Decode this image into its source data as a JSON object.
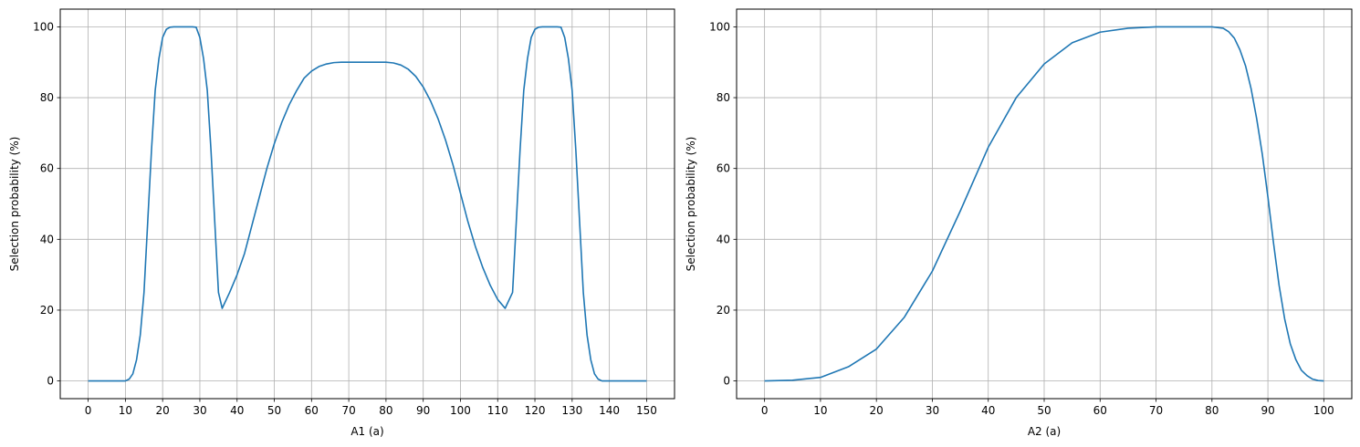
{
  "chart_data": [
    {
      "type": "line",
      "title": "",
      "xlabel": "A1 (a)",
      "ylabel": "Selection probability (%)",
      "xlim": [
        -7.5,
        157.5
      ],
      "ylim": [
        -5,
        105
      ],
      "xticks": [
        0,
        10,
        20,
        30,
        40,
        50,
        60,
        70,
        80,
        90,
        100,
        110,
        120,
        130,
        140,
        150
      ],
      "yticks": [
        0,
        20,
        40,
        60,
        80,
        100
      ],
      "grid": true,
      "color": "#1f77b4",
      "series": [
        {
          "x": [
            0,
            10,
            11,
            12,
            13,
            14,
            15,
            16,
            17,
            18,
            19,
            20,
            21,
            22,
            23,
            24,
            28,
            29,
            30,
            31,
            32,
            33,
            34,
            35,
            36,
            38,
            40,
            42,
            44,
            46,
            48,
            50,
            52,
            54,
            56,
            58,
            60,
            62,
            64,
            66,
            68,
            70,
            75,
            80,
            82,
            84,
            86,
            88,
            90,
            92,
            94,
            96,
            98,
            100,
            102,
            104,
            106,
            108,
            110,
            112,
            114,
            115,
            116,
            117,
            118,
            119,
            120,
            121,
            122,
            126,
            127,
            128,
            129,
            130,
            131,
            132,
            133,
            134,
            135,
            136,
            137,
            138,
            139,
            140,
            150
          ],
          "y": [
            0,
            0,
            0.5,
            2,
            6,
            13,
            25,
            45,
            65,
            82,
            91,
            97,
            99.3,
            99.9,
            100,
            100,
            100,
            99.9,
            97,
            91,
            82,
            65,
            45,
            25,
            20.5,
            25,
            30,
            36,
            44,
            52,
            60,
            67,
            73,
            78,
            82,
            85.5,
            87.5,
            88.8,
            89.5,
            89.9,
            90,
            90,
            90,
            90,
            89.8,
            89.2,
            88,
            86,
            83,
            79,
            74,
            68,
            61,
            53,
            45,
            38,
            32,
            27,
            23,
            20.5,
            25,
            45,
            65,
            82,
            91,
            97,
            99.3,
            99.9,
            100,
            100,
            99.9,
            97,
            91,
            82,
            65,
            45,
            25,
            13,
            6,
            2,
            0.5,
            0,
            0,
            0,
            0
          ]
        }
      ]
    },
    {
      "type": "line",
      "title": "",
      "xlabel": "A2 (a)",
      "ylabel": "Selection probability (%)",
      "xlim": [
        -5,
        105
      ],
      "ylim": [
        -5,
        105
      ],
      "xticks": [
        0,
        10,
        20,
        30,
        40,
        50,
        60,
        70,
        80,
        90,
        100
      ],
      "yticks": [
        0,
        20,
        40,
        60,
        80,
        100
      ],
      "grid": true,
      "color": "#1f77b4",
      "series": [
        {
          "x": [
            0,
            5,
            10,
            15,
            20,
            25,
            30,
            35,
            40,
            45,
            50,
            55,
            60,
            65,
            70,
            75,
            80,
            82,
            83,
            84,
            85,
            86,
            87,
            88,
            89,
            90,
            91,
            92,
            93,
            94,
            95,
            96,
            97,
            98,
            99,
            100
          ],
          "y": [
            0,
            0.2,
            1,
            4,
            9,
            18,
            31,
            48,
            66,
            80,
            89.5,
            95.5,
            98.5,
            99.6,
            100,
            100,
            100,
            99.6,
            98.6,
            96.8,
            93.5,
            89,
            82.5,
            74,
            64,
            52,
            39,
            27,
            17.5,
            10.5,
            6,
            3,
            1.5,
            0.5,
            0.1,
            0
          ]
        }
      ]
    }
  ]
}
